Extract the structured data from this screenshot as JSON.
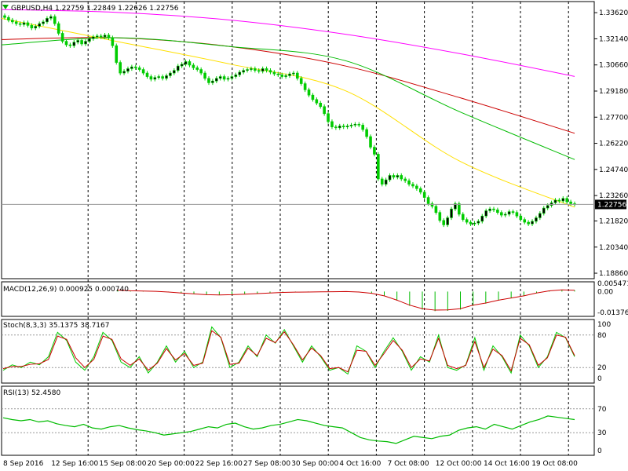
{
  "chart_data": {
    "type": "candlestick",
    "symbol_line": "GBPUSD,H4  1.22759 1.22849 1.22626 1.22756",
    "price_axis": {
      "ylim": [
        1.1855,
        1.3425
      ],
      "ticks": [
        "1.33620",
        "1.32140",
        "1.30660",
        "1.29180",
        "1.27700",
        "1.26220",
        "1.24740",
        "1.23260",
        "1.21820",
        "1.20340",
        "1.18860"
      ],
      "current_price": 1.22756,
      "current_label": "1.22756"
    },
    "time_axis": {
      "labels": [
        "8 Sep 2016",
        "12 Sep 16:00",
        "15 Sep 08:00",
        "20 Sep 00:00",
        "22 Sep 16:00",
        "27 Sep 08:00",
        "30 Sep 00:00",
        "4 Oct 16:00",
        "7 Oct 08:00",
        "12 Oct 00:00",
        "14 Oct 16:00",
        "19 Oct 08:00"
      ]
    },
    "candles_close": [
      1.3335,
      1.332,
      1.331,
      1.33,
      1.3295,
      1.3305,
      1.329,
      1.3275,
      1.3285,
      1.33,
      1.331,
      1.333,
      1.334,
      1.33,
      1.3245,
      1.32,
      1.318,
      1.3175,
      1.3195,
      1.3205,
      1.3185,
      1.32,
      1.3215,
      1.3225,
      1.323,
      1.3225,
      1.3235,
      1.322,
      1.3175,
      1.308,
      1.302,
      1.303,
      1.3045,
      1.3055,
      1.305,
      1.304,
      1.302,
      1.3,
      1.2985,
      1.2995,
      1.3,
      1.299,
      1.3005,
      1.302,
      1.3035,
      1.306,
      1.307,
      1.3085,
      1.3065,
      1.305,
      1.304,
      1.302,
      1.299,
      1.2965,
      1.2975,
      1.299,
      1.3,
      1.2985,
      1.299,
      1.3,
      1.301,
      1.3025,
      1.3035,
      1.304,
      1.3045,
      1.3035,
      1.303,
      1.3045,
      1.3035,
      1.3025,
      1.3015,
      1.301,
      1.3,
      1.3005,
      1.3015,
      1.302,
      1.299,
      1.296,
      1.2925,
      1.2895,
      1.287,
      1.285,
      1.283,
      1.279,
      1.2745,
      1.2715,
      1.271,
      1.272,
      1.2715,
      1.272,
      1.2725,
      1.273,
      1.2725,
      1.27,
      1.266,
      1.26,
      1.256,
      1.242,
      1.239,
      1.2415,
      1.244,
      1.243,
      1.244,
      1.242,
      1.241,
      1.239,
      1.238,
      1.2365,
      1.2345,
      1.2315,
      1.228,
      1.2265,
      1.223,
      1.2185,
      1.216,
      1.22,
      1.225,
      1.228,
      1.222,
      1.219,
      1.2175,
      1.2165,
      1.217,
      1.218,
      1.221,
      1.224,
      1.225,
      1.2245,
      1.223,
      1.2215,
      1.222,
      1.2235,
      1.223,
      1.221,
      1.219,
      1.2175,
      1.2165,
      1.218,
      1.22,
      1.2225,
      1.2255,
      1.227,
      1.2285,
      1.23,
      1.2295,
      1.231,
      1.229,
      1.228,
      1.2276
    ],
    "moving_averages": [
      {
        "color": "#ff00ff",
        "values": [
          1.338,
          1.3364,
          1.332,
          1.324,
          1.313,
          1.3001
        ]
      },
      {
        "color": "#cc0000",
        "values": [
          1.321,
          1.322,
          1.317,
          1.306,
          1.288,
          1.2679
        ]
      },
      {
        "color": "#00bb00",
        "values": [
          1.318,
          1.322,
          1.317,
          1.309,
          1.28,
          1.253
        ]
      },
      {
        "color": "#ffe000",
        "values": [
          1.333,
          1.32,
          1.307,
          1.292,
          1.252,
          1.226
        ]
      }
    ],
    "macd": {
      "label": "MACD(12,26,9) 0.000925 0.000740",
      "ylim": [
        -0.0165,
        0.0065
      ],
      "ticks": [
        "0.005471",
        "0.00",
        "-0.013763"
      ],
      "hist": [
        0.001,
        0.0006,
        0.0004,
        0.0002,
        -0.0003,
        -0.001,
        -0.0016,
        -0.0022,
        -0.0024,
        -0.0022,
        -0.0018,
        -0.0014,
        -0.001,
        -0.0006,
        -0.0004,
        -0.0003,
        -0.0002,
        -0.0001,
        0.0,
        -0.0003,
        -0.0012,
        -0.003,
        -0.006,
        -0.0095,
        -0.012,
        -0.013,
        -0.0128,
        -0.012,
        -0.0095,
        -0.008,
        -0.006,
        -0.0045,
        -0.003,
        -0.001,
        0.0005,
        0.0012,
        0.0009
      ]
    },
    "stochastic": {
      "label": "Stoch(8,3,3) 35.1375 38.7167",
      "ticks": [
        "100",
        "80",
        "20",
        "0"
      ],
      "main": [
        15,
        25,
        20,
        30,
        25,
        40,
        85,
        70,
        30,
        15,
        40,
        85,
        70,
        30,
        20,
        40,
        10,
        30,
        60,
        30,
        50,
        20,
        30,
        95,
        75,
        20,
        30,
        60,
        40,
        80,
        65,
        90,
        60,
        30,
        60,
        40,
        15,
        20,
        8,
        60,
        50,
        20,
        50,
        75,
        50,
        15,
        40,
        30,
        80,
        20,
        15,
        25,
        75,
        15,
        60,
        40,
        10,
        80,
        60,
        20,
        40,
        85,
        75,
        40
      ],
      "signal": [
        18,
        22,
        22,
        26,
        27,
        35,
        78,
        72,
        38,
        20,
        35,
        78,
        72,
        36,
        24,
        36,
        15,
        28,
        55,
        34,
        46,
        24,
        28,
        88,
        76,
        26,
        28,
        56,
        42,
        74,
        66,
        86,
        62,
        34,
        56,
        42,
        18,
        20,
        12,
        52,
        50,
        24,
        46,
        70,
        52,
        20,
        36,
        32,
        74,
        24,
        18,
        24,
        68,
        20,
        54,
        42,
        14,
        74,
        62,
        24,
        38,
        80,
        76,
        42
      ]
    },
    "rsi": {
      "label": "RSI(13) 52.4580",
      "ticks": [
        "70",
        "30",
        "0"
      ],
      "levels": [
        70,
        30
      ],
      "values": [
        55,
        52,
        50,
        52,
        48,
        50,
        45,
        42,
        40,
        44,
        38,
        36,
        40,
        42,
        38,
        35,
        33,
        30,
        26,
        28,
        30,
        32,
        36,
        40,
        38,
        44,
        46,
        40,
        36,
        38,
        42,
        44,
        48,
        52,
        50,
        46,
        42,
        40,
        38,
        30,
        22,
        18,
        16,
        15,
        12,
        18,
        24,
        22,
        20,
        24,
        26,
        34,
        38,
        40,
        36,
        44,
        40,
        36,
        42,
        48,
        52,
        58,
        56,
        54,
        52
      ]
    }
  }
}
